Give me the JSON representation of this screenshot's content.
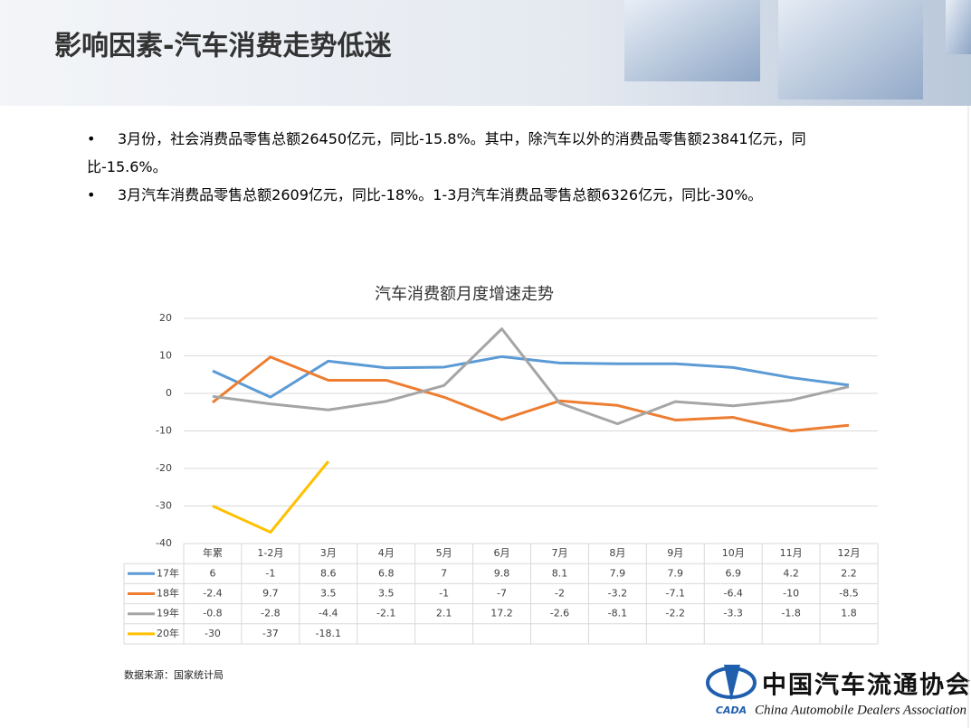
{
  "header": {
    "title": "影响因素-汽车消费走势低迷"
  },
  "bullets": [
    "3月份，社会消费品零售总额26450亿元，同比-15.8%。其中，除汽车以外的消费品零售额23841亿元，同比-15.6%。",
    "3月汽车消费品零售总额2609亿元，同比-18%。1-3月汽车消费品零售总额6326亿元，同比-30%。"
  ],
  "chart_data": {
    "type": "line",
    "title": "汽车消费额月度增速走势",
    "categories": [
      "年累",
      "1-2月",
      "3月",
      "4月",
      "5月",
      "6月",
      "7月",
      "8月",
      "9月",
      "10月",
      "11月",
      "12月"
    ],
    "series": [
      {
        "name": "17年",
        "color": "#5b9bd5",
        "values": [
          6,
          -1,
          8.6,
          6.8,
          7,
          9.8,
          8.1,
          7.9,
          7.9,
          6.9,
          4.2,
          2.2
        ]
      },
      {
        "name": "18年",
        "color": "#ed7d31",
        "values": [
          -2.4,
          9.7,
          3.5,
          3.5,
          -1,
          -7,
          -2,
          -3.2,
          -7.1,
          -6.4,
          -10,
          -8.5
        ]
      },
      {
        "name": "19年",
        "color": "#a5a5a5",
        "values": [
          -0.8,
          -2.8,
          -4.4,
          -2.1,
          2.1,
          17.2,
          -2.6,
          -8.1,
          -2.2,
          -3.3,
          -1.8,
          1.8
        ]
      },
      {
        "name": "20年",
        "color": "#ffc000",
        "values": [
          -30,
          -37,
          -18.1,
          null,
          null,
          null,
          null,
          null,
          null,
          null,
          null,
          null
        ]
      }
    ],
    "ylim": [
      -40,
      20
    ],
    "yticks": [
      -40,
      -30,
      -20,
      -10,
      0,
      10,
      20
    ],
    "grid": true
  },
  "source": "数据来源：国家统计局",
  "logo": {
    "cn": "中国汽车流通协会",
    "en": "China Automobile Dealers Association",
    "abbr": "CADA"
  }
}
